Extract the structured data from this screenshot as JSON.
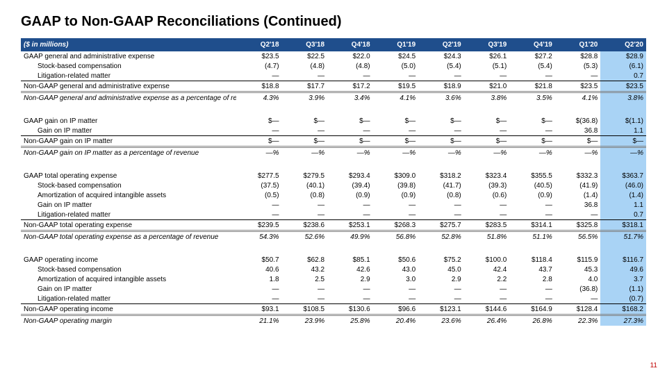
{
  "title": "GAAP to Non-GAAP Reconciliations (Continued)",
  "header_label": "($ in millions)",
  "periods": [
    "Q2'18",
    "Q3'18",
    "Q4'18",
    "Q1'19",
    "Q2'19",
    "Q3'19",
    "Q4'19",
    "Q1'20",
    "Q2'20"
  ],
  "page_number": "11",
  "colors": {
    "header_bg": "#1f4e8c",
    "highlight_bg": "#a9d3f5",
    "page_num": "#c00000"
  },
  "rows": [
    {
      "label": "GAAP general and administrative expense",
      "v": [
        "$23.5",
        "$22.5",
        "$22.0",
        "$24.5",
        "$24.3",
        "$26.1",
        "$27.2",
        "$28.8",
        "$28.9"
      ]
    },
    {
      "label": "Stock-based compensation",
      "indent": true,
      "v": [
        "(4.7)",
        "(4.8)",
        "(4.8)",
        "(5.0)",
        "(5.4)",
        "(5.1)",
        "(5.4)",
        "(5.3)",
        "(6.1)"
      ]
    },
    {
      "label": "Litigation-related matter",
      "indent": true,
      "v": [
        "—",
        "—",
        "—",
        "—",
        "—",
        "—",
        "—",
        "—",
        "0.7"
      ]
    },
    {
      "label": "Non-GAAP general and administrative expense",
      "topline": true,
      "v": [
        "$18.8",
        "$17.7",
        "$17.2",
        "$19.5",
        "$18.9",
        "$21.0",
        "$21.8",
        "$23.5",
        "$23.5"
      ]
    },
    {
      "label": "Non-GAAP general and administrative expense as a percentage of revenue",
      "italic": true,
      "dbltop": true,
      "v": [
        "4.3%",
        "3.9%",
        "3.4%",
        "4.1%",
        "3.6%",
        "3.8%",
        "3.5%",
        "4.1%",
        "3.8%"
      ]
    },
    {
      "spacer": true
    },
    {
      "label": "GAAP gain on IP matter",
      "v": [
        "$—",
        "$—",
        "$—",
        "$—",
        "$—",
        "$—",
        "$—",
        "$(36.8)",
        "$(1.1)"
      ]
    },
    {
      "label": "Gain on IP matter",
      "indent": true,
      "v": [
        "—",
        "—",
        "—",
        "—",
        "—",
        "—",
        "—",
        "36.8",
        "1.1"
      ]
    },
    {
      "label": "Non-GAAP gain on IP matter",
      "topline": true,
      "v": [
        "$—",
        "$—",
        "$—",
        "$—",
        "$—",
        "$—",
        "$—",
        "$—",
        "$—"
      ]
    },
    {
      "label": "Non-GAAP gain on IP matter as a percentage of revenue",
      "italic": true,
      "dbltop": true,
      "v": [
        "—%",
        "—%",
        "—%",
        "—%",
        "—%",
        "—%",
        "—%",
        "—%",
        "—%"
      ]
    },
    {
      "spacer": true
    },
    {
      "label": "GAAP total operating expense",
      "v": [
        "$277.5",
        "$279.5",
        "$293.4",
        "$309.0",
        "$318.2",
        "$323.4",
        "$355.5",
        "$332.3",
        "$363.7"
      ]
    },
    {
      "label": "Stock-based compensation",
      "indent": true,
      "v": [
        "(37.5)",
        "(40.1)",
        "(39.4)",
        "(39.8)",
        "(41.7)",
        "(39.3)",
        "(40.5)",
        "(41.9)",
        "(46.0)"
      ]
    },
    {
      "label": "Amortization of acquired intangible assets",
      "indent": true,
      "v": [
        "(0.5)",
        "(0.8)",
        "(0.9)",
        "(0.9)",
        "(0.8)",
        "(0.6)",
        "(0.9)",
        "(1.4)",
        "(1.4)"
      ]
    },
    {
      "label": "Gain on IP matter",
      "indent": true,
      "v": [
        "—",
        "—",
        "—",
        "—",
        "—",
        "—",
        "—",
        "36.8",
        "1.1"
      ]
    },
    {
      "label": "Litigation-related matter",
      "indent": true,
      "v": [
        "—",
        "—",
        "—",
        "—",
        "—",
        "—",
        "—",
        "—",
        "0.7"
      ]
    },
    {
      "label": "Non-GAAP total operating expense",
      "topline": true,
      "v": [
        "$239.5",
        "$238.6",
        "$253.1",
        "$268.3",
        "$275.7",
        "$283.5",
        "$314.1",
        "$325.8",
        "$318.1"
      ]
    },
    {
      "label": "Non-GAAP total operating expense as a percentage of revenue",
      "italic": true,
      "dbltop": true,
      "v": [
        "54.3%",
        "52.6%",
        "49.9%",
        "56.8%",
        "52.8%",
        "51.8%",
        "51.1%",
        "56.5%",
        "51.7%"
      ]
    },
    {
      "spacer": true
    },
    {
      "label": "GAAP operating income",
      "v": [
        "$50.7",
        "$62.8",
        "$85.1",
        "$50.6",
        "$75.2",
        "$100.0",
        "$118.4",
        "$115.9",
        "$116.7"
      ]
    },
    {
      "label": "Stock-based compensation",
      "indent": true,
      "v": [
        "40.6",
        "43.2",
        "42.6",
        "43.0",
        "45.0",
        "42.4",
        "43.7",
        "45.3",
        "49.6"
      ]
    },
    {
      "label": "Amortization of acquired intangible assets",
      "indent": true,
      "v": [
        "1.8",
        "2.5",
        "2.9",
        "3.0",
        "2.9",
        "2.2",
        "2.8",
        "4.0",
        "3.7"
      ]
    },
    {
      "label": "Gain on IP matter",
      "indent": true,
      "v": [
        "—",
        "—",
        "—",
        "—",
        "—",
        "—",
        "—",
        "(36.8)",
        "(1.1)"
      ]
    },
    {
      "label": "Litigation-related matter",
      "indent": true,
      "v": [
        "—",
        "—",
        "—",
        "—",
        "—",
        "—",
        "—",
        "—",
        "(0.7)"
      ]
    },
    {
      "label": "Non-GAAP operating income",
      "topline": true,
      "v": [
        "$93.1",
        "$108.5",
        "$130.6",
        "$96.6",
        "$123.1",
        "$144.6",
        "$164.9",
        "$128.4",
        "$168.2"
      ]
    },
    {
      "label": "Non-GAAP operating margin",
      "italic": true,
      "dbltop": true,
      "v": [
        "21.1%",
        "23.9%",
        "25.8%",
        "20.4%",
        "23.6%",
        "26.4%",
        "26.8%",
        "22.3%",
        "27.3%"
      ]
    }
  ]
}
